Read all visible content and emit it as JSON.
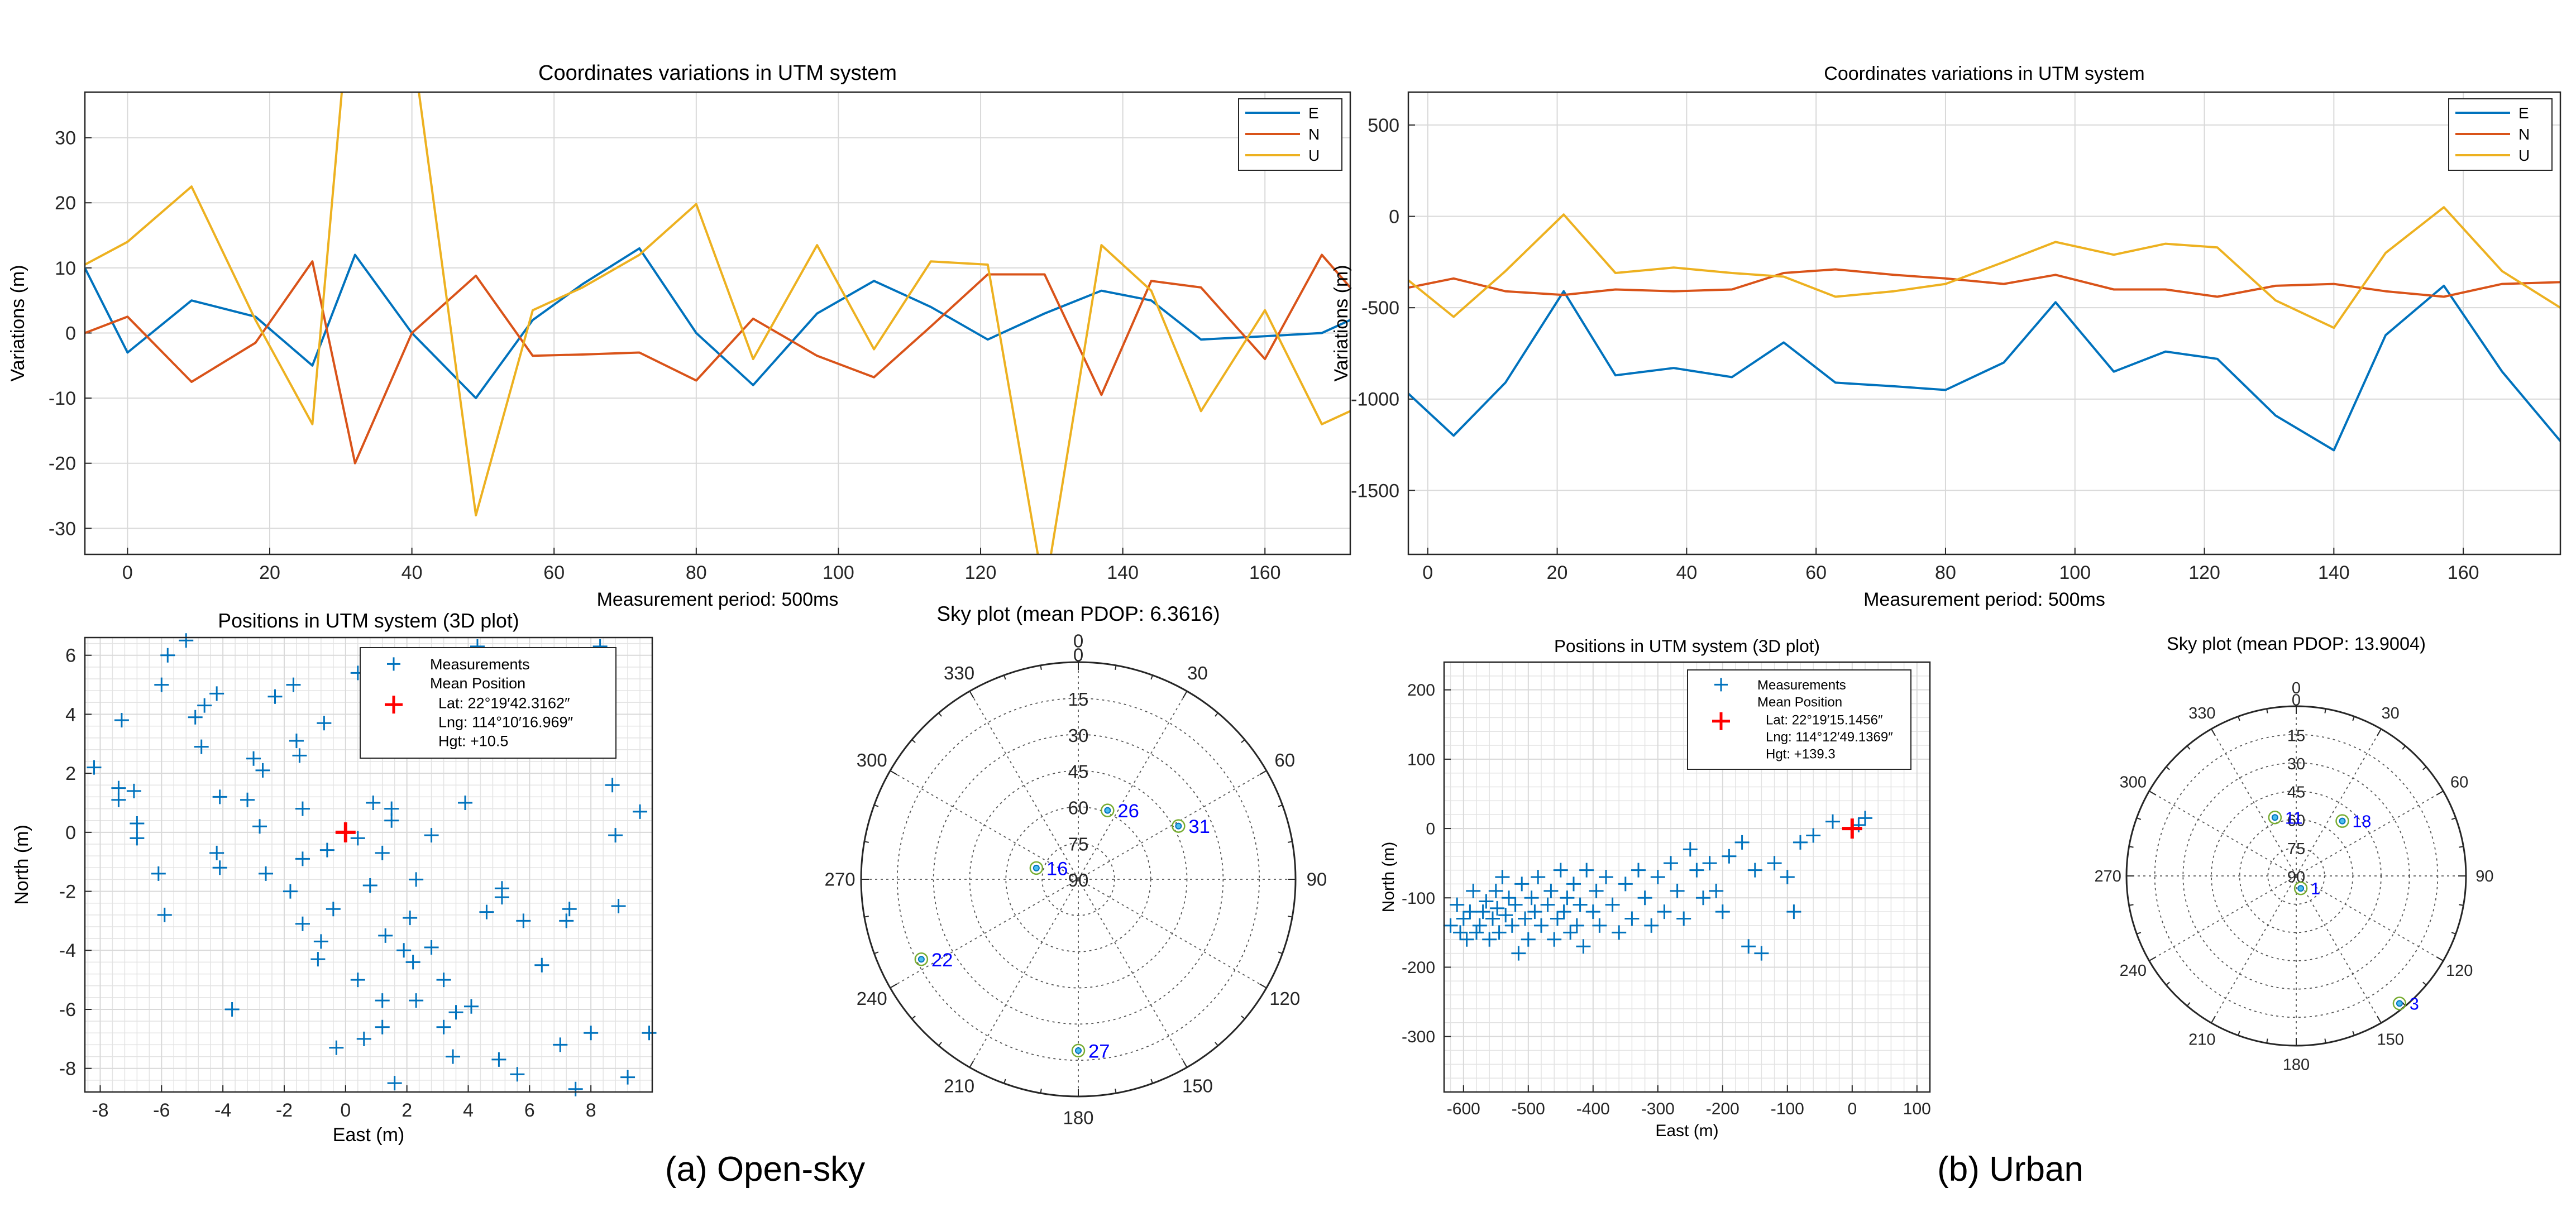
{
  "captions": {
    "a": "(a) Open-sky",
    "b": "(b) Urban"
  },
  "colors": {
    "E": "#0072BD",
    "N": "#D95319",
    "U": "#EDB120",
    "meas": "#0072BD",
    "mean": "#FF0000",
    "sat_label": "#0000FF"
  },
  "chart_data": [
    {
      "id": "a_line",
      "type": "line",
      "title": "Coordinates variations in UTM system",
      "xlabel": "Measurement period: 500ms",
      "ylabel": "Variations (m)",
      "xlim": [
        -6,
        172
      ],
      "ylim": [
        -34,
        37
      ],
      "xticks": [
        0,
        20,
        40,
        60,
        80,
        100,
        120,
        140,
        160
      ],
      "yticks": [
        -30,
        -20,
        -10,
        0,
        10,
        20,
        30
      ],
      "legend_position": "top-right",
      "x": [
        -6,
        0,
        9,
        18,
        26,
        32,
        40,
        49,
        57,
        64,
        72,
        80,
        88,
        97,
        105,
        113,
        121,
        129,
        137,
        144,
        151,
        160,
        168,
        172
      ],
      "series": [
        {
          "name": "E",
          "color": "E",
          "values": [
            10,
            -3,
            5,
            2.5,
            -5,
            12,
            0,
            -10,
            2,
            7.5,
            13,
            0,
            -8,
            3,
            8,
            4,
            -1,
            3,
            6.5,
            5,
            -1,
            -0.5,
            0,
            2
          ]
        },
        {
          "name": "N",
          "color": "N",
          "values": [
            0,
            2.5,
            -7.5,
            -1.5,
            11,
            -20,
            0,
            8.8,
            -3.5,
            -3.3,
            -3,
            -7.3,
            2.2,
            -3.5,
            -6.8,
            1,
            9,
            9,
            -9.5,
            8,
            7,
            -4,
            12,
            7
          ]
        },
        {
          "name": "U",
          "color": "U",
          "values": [
            10.5,
            14,
            22.5,
            2,
            -14,
            60,
            45,
            -28,
            3.5,
            7,
            12,
            19.8,
            -4,
            13.5,
            -2.5,
            11,
            10.5,
            -40,
            13.5,
            6.5,
            -12,
            3.5,
            -14,
            -12
          ]
        }
      ]
    },
    {
      "id": "b_line",
      "type": "line",
      "title": "Coordinates variations in UTM system",
      "xlabel": "Measurement period: 500ms",
      "ylabel": "Variations (m)",
      "xlim": [
        -3,
        175
      ],
      "ylim": [
        -1850,
        680
      ],
      "xticks": [
        0,
        20,
        40,
        60,
        80,
        100,
        120,
        140,
        160
      ],
      "yticks": [
        -1500,
        -1000,
        -500,
        0,
        500
      ],
      "legend_position": "top-right",
      "x": [
        -3,
        4,
        12,
        21,
        29,
        38,
        47,
        55,
        63,
        72,
        80,
        89,
        97,
        106,
        114,
        122,
        131,
        140,
        148,
        157,
        166,
        175
      ],
      "series": [
        {
          "name": "E",
          "color": "E",
          "values": [
            -970,
            -1200,
            -910,
            -410,
            -870,
            -830,
            -880,
            -690,
            -910,
            -930,
            -950,
            -800,
            -470,
            -850,
            -740,
            -780,
            -1090,
            -1280,
            -650,
            -380,
            -850,
            -1230
          ]
        },
        {
          "name": "N",
          "color": "N",
          "values": [
            -390,
            -340,
            -410,
            -430,
            -400,
            -410,
            -400,
            -310,
            -290,
            -320,
            -340,
            -370,
            -320,
            -400,
            -400,
            -440,
            -380,
            -370,
            -410,
            -440,
            -370,
            -360
          ]
        },
        {
          "name": "U",
          "color": "U",
          "values": [
            -350,
            -550,
            -300,
            10,
            -310,
            -280,
            -310,
            -330,
            -440,
            -410,
            -370,
            -250,
            -140,
            -210,
            -150,
            -170,
            -460,
            -610,
            -200,
            50,
            -300,
            -500
          ]
        }
      ]
    },
    {
      "id": "a_scatter",
      "type": "scatter",
      "title": "Positions in UTM system (3D plot)",
      "xlabel": "East (m)",
      "ylabel": "North (m)",
      "xlim": [
        -8.5,
        10
      ],
      "ylim": [
        -8.8,
        6.6
      ],
      "xticks": [
        -8,
        -6,
        -4,
        -2,
        0,
        2,
        4,
        6,
        8
      ],
      "yticks": [
        -8,
        -6,
        -4,
        -2,
        0,
        2,
        4,
        6
      ],
      "legend": {
        "measurements": "Measurements",
        "mean": "Mean Position",
        "lat": "Lat: 22°19′42.3162″",
        "lng": "Lng: 114°10′16.969″",
        "hgt": "Hgt: +10.5"
      },
      "mean_point": [
        0,
        0
      ],
      "points": [
        [
          -8.2,
          2.2
        ],
        [
          -7.4,
          1.5
        ],
        [
          -7.4,
          1.1
        ],
        [
          -7.3,
          3.8
        ],
        [
          -6.9,
          1.4
        ],
        [
          -6.8,
          0.3
        ],
        [
          -6.8,
          -0.2
        ],
        [
          -6.1,
          -1.4
        ],
        [
          -5.9,
          -2.8
        ],
        [
          -6,
          5
        ],
        [
          -5.8,
          6
        ],
        [
          -5.2,
          6.5
        ],
        [
          -4.9,
          3.9
        ],
        [
          -4.7,
          2.9
        ],
        [
          -4.6,
          4.3
        ],
        [
          -4.2,
          4.7
        ],
        [
          -4.2,
          -0.7
        ],
        [
          -4.1,
          -1.2
        ],
        [
          -4.1,
          1.2
        ],
        [
          -3.7,
          -6
        ],
        [
          -3.2,
          1.1
        ],
        [
          -3,
          2.5
        ],
        [
          -2.8,
          0.2
        ],
        [
          -2.7,
          2.1
        ],
        [
          -2.6,
          -1.4
        ],
        [
          -2.3,
          4.6
        ],
        [
          -1.8,
          -2
        ],
        [
          -1.7,
          5
        ],
        [
          -1.6,
          3.1
        ],
        [
          -1.5,
          2.6
        ],
        [
          -1.4,
          -3.1
        ],
        [
          -1.4,
          -0.9
        ],
        [
          -1.4,
          0.8
        ],
        [
          -0.9,
          -4.3
        ],
        [
          -0.8,
          -3.7
        ],
        [
          -0.7,
          3.7
        ],
        [
          -0.6,
          -0.6
        ],
        [
          -0.4,
          -2.6
        ],
        [
          -0.3,
          -7.3
        ],
        [
          0.4,
          -5
        ],
        [
          0.4,
          -0.2
        ],
        [
          0.4,
          5.4
        ],
        [
          0.6,
          -7
        ],
        [
          0.8,
          -1.8
        ],
        [
          0.9,
          1
        ],
        [
          1.2,
          -5.7
        ],
        [
          1.2,
          -6.6
        ],
        [
          1.2,
          -0.7
        ],
        [
          1.3,
          -3.5
        ],
        [
          1.5,
          0.8
        ],
        [
          1.5,
          0.4
        ],
        [
          1.6,
          -8.5
        ],
        [
          1.6,
          5.6
        ],
        [
          1.9,
          -4
        ],
        [
          2.1,
          -2.9
        ],
        [
          2.2,
          -4.4
        ],
        [
          2.3,
          -5.7
        ],
        [
          2.3,
          -1.6
        ],
        [
          2.8,
          -0.1
        ],
        [
          2.8,
          -3.9
        ],
        [
          3.2,
          -6.6
        ],
        [
          3.2,
          -5
        ],
        [
          3.5,
          -7.6
        ],
        [
          3.6,
          -6.1
        ],
        [
          3.9,
          1
        ],
        [
          4.1,
          -5.9
        ],
        [
          4.3,
          6.3
        ],
        [
          4.6,
          -2.7
        ],
        [
          5,
          -7.7
        ],
        [
          5.1,
          -1.9
        ],
        [
          5.1,
          -2.2
        ],
        [
          5.6,
          -8.2
        ],
        [
          5.8,
          -3
        ],
        [
          6.4,
          -4.5
        ],
        [
          7,
          -7.2
        ],
        [
          7.2,
          -3
        ],
        [
          7.3,
          -2.6
        ],
        [
          7.5,
          -8.7
        ],
        [
          8,
          -6.8
        ],
        [
          8.3,
          6.3
        ],
        [
          8.7,
          1.6
        ],
        [
          8.8,
          -0.1
        ],
        [
          8.9,
          -2.5
        ],
        [
          9.2,
          -8.3
        ],
        [
          9.6,
          0.7
        ],
        [
          9.9,
          -6.8
        ]
      ]
    },
    {
      "id": "b_scatter",
      "type": "scatter",
      "title": "Positions in UTM system (3D plot)",
      "xlabel": "East (m)",
      "ylabel": "North (m)",
      "xlim": [
        -630,
        120
      ],
      "ylim": [
        -380,
        240
      ],
      "xticks": [
        -600,
        -500,
        -400,
        -300,
        -200,
        -100,
        0,
        100
      ],
      "yticks": [
        -300,
        -200,
        -100,
        0,
        100,
        200
      ],
      "legend": {
        "measurements": "Measurements",
        "mean": "Mean Position",
        "lat": "Lat: 22°19′15.1456″",
        "lng": "Lng: 114°12′49.1369″",
        "hgt": "Hgt: +139.3"
      },
      "mean_point": [
        0,
        0
      ],
      "points": [
        [
          -620,
          -140
        ],
        [
          -610,
          -110
        ],
        [
          -605,
          -150
        ],
        [
          -600,
          -130
        ],
        [
          -595,
          -160
        ],
        [
          -590,
          -120
        ],
        [
          -585,
          -90
        ],
        [
          -580,
          -150
        ],
        [
          -575,
          -140
        ],
        [
          -570,
          -120
        ],
        [
          -565,
          -105
        ],
        [
          -560,
          -160
        ],
        [
          -555,
          -130
        ],
        [
          -550,
          -90
        ],
        [
          -548,
          -115
        ],
        [
          -545,
          -150
        ],
        [
          -540,
          -70
        ],
        [
          -535,
          -125
        ],
        [
          -530,
          -100
        ],
        [
          -525,
          -140
        ],
        [
          -520,
          -110
        ],
        [
          -515,
          -180
        ],
        [
          -510,
          -80
        ],
        [
          -505,
          -130
        ],
        [
          -500,
          -160
        ],
        [
          -495,
          -100
        ],
        [
          -490,
          -120
        ],
        [
          -485,
          -70
        ],
        [
          -480,
          -140
        ],
        [
          -470,
          -110
        ],
        [
          -465,
          -90
        ],
        [
          -460,
          -160
        ],
        [
          -455,
          -130
        ],
        [
          -450,
          -60
        ],
        [
          -445,
          -120
        ],
        [
          -440,
          -100
        ],
        [
          -435,
          -150
        ],
        [
          -430,
          -80
        ],
        [
          -425,
          -140
        ],
        [
          -420,
          -110
        ],
        [
          -415,
          -170
        ],
        [
          -410,
          -60
        ],
        [
          -400,
          -120
        ],
        [
          -395,
          -90
        ],
        [
          -390,
          -140
        ],
        [
          -380,
          -70
        ],
        [
          -370,
          -110
        ],
        [
          -360,
          -150
        ],
        [
          -350,
          -80
        ],
        [
          -340,
          -130
        ],
        [
          -330,
          -60
        ],
        [
          -320,
          -100
        ],
        [
          -310,
          -140
        ],
        [
          -300,
          -70
        ],
        [
          -290,
          -120
        ],
        [
          -280,
          -50
        ],
        [
          -270,
          -90
        ],
        [
          -260,
          -130
        ],
        [
          -250,
          -30
        ],
        [
          -240,
          -60
        ],
        [
          -230,
          -100
        ],
        [
          -220,
          -50
        ],
        [
          -210,
          -90
        ],
        [
          -200,
          -120
        ],
        [
          -190,
          -40
        ],
        [
          -170,
          -20
        ],
        [
          -160,
          -170
        ],
        [
          -150,
          -60
        ],
        [
          -140,
          -180
        ],
        [
          -120,
          -50
        ],
        [
          -100,
          -70
        ],
        [
          -90,
          -120
        ],
        [
          -80,
          -20
        ],
        [
          -60,
          -10
        ],
        [
          -30,
          10
        ],
        [
          10,
          5
        ],
        [
          20,
          15
        ]
      ]
    },
    {
      "id": "a_sky",
      "type": "polar",
      "title": "Sky plot (mean PDOP: 6.3616)",
      "azimuth_labels": [
        "0",
        "30",
        "60",
        "90",
        "120",
        "150",
        "180",
        "210",
        "240",
        "270",
        "300",
        "330"
      ],
      "elevation_labels": [
        "0",
        "15",
        "30",
        "45",
        "60",
        "75",
        "90"
      ],
      "satellites": [
        {
          "prn": "26",
          "azimuth": 23,
          "elevation": 59
        },
        {
          "prn": "31",
          "azimuth": 62,
          "elevation": 43
        },
        {
          "prn": "16",
          "azimuth": 285,
          "elevation": 72
        },
        {
          "prn": "22",
          "azimuth": 243,
          "elevation": 17
        },
        {
          "prn": "27",
          "azimuth": 180,
          "elevation": 19
        }
      ]
    },
    {
      "id": "b_sky",
      "type": "polar",
      "title": "Sky plot (mean PDOP: 13.9004)",
      "azimuth_labels": [
        "0",
        "30",
        "60",
        "90",
        "120",
        "150",
        "180",
        "210",
        "240",
        "270",
        "300",
        "330"
      ],
      "elevation_labels": [
        "0",
        "15",
        "30",
        "45",
        "60",
        "75",
        "90"
      ],
      "satellites": [
        {
          "prn": "18",
          "azimuth": 40,
          "elevation": 52
        },
        {
          "prn": "11",
          "azimuth": 340,
          "elevation": 57
        },
        {
          "prn": "1",
          "azimuth": 160,
          "elevation": 83
        },
        {
          "prn": "3",
          "azimuth": 141,
          "elevation": 3
        }
      ]
    }
  ]
}
